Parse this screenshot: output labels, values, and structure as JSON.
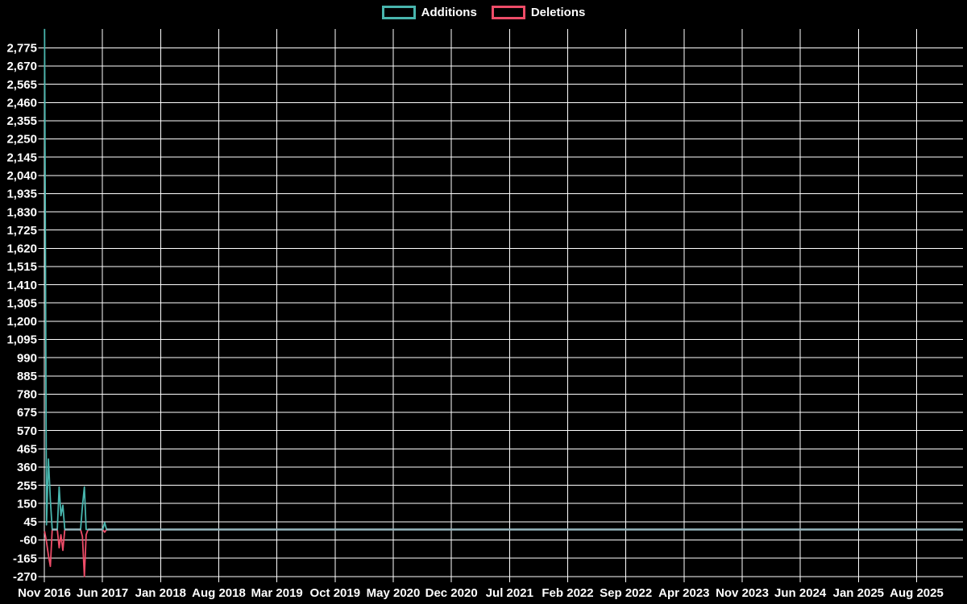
{
  "page": {
    "background_color": "#000000"
  },
  "legend": {
    "items": [
      {
        "label": "Additions",
        "color": "#48b5ad"
      },
      {
        "label": "Deletions",
        "color": "#ee4c68"
      }
    ]
  },
  "chart_data": {
    "type": "line",
    "title": "",
    "xlabel": "",
    "ylabel": "",
    "grid": true,
    "legend_position": "top-center",
    "background_color": "#000000",
    "grid_color": "#ffffff",
    "text_color": "#ffffff",
    "zero_overlap_color": "#96b6bd",
    "x_tick_labels": [
      "Nov 2016",
      "Jun 2017",
      "Jan 2018",
      "Aug 2018",
      "Mar 2019",
      "Oct 2019",
      "May 2020",
      "Dec 2020",
      "Jul 2021",
      "Feb 2022",
      "Sep 2022",
      "Apr 2023",
      "Nov 2023",
      "Jun 2024",
      "Jan 2025",
      "Aug 2025"
    ],
    "x_axis": {
      "start_label": "Nov 2016",
      "end_label": "Aug 2025",
      "tick_interval_months": 7
    },
    "y_tick_values": [
      2775,
      2670,
      2565,
      2460,
      2355,
      2250,
      2145,
      2040,
      1935,
      1830,
      1725,
      1620,
      1515,
      1410,
      1305,
      1200,
      1095,
      990,
      885,
      780,
      675,
      570,
      465,
      360,
      255,
      150,
      45,
      -60,
      -165,
      -270
    ],
    "y_axis": {
      "min": -304,
      "max": 2884,
      "tick_step": 105
    },
    "series": [
      {
        "name": "Additions",
        "color": "#48b5ad"
      },
      {
        "name": "Deletions",
        "color": "#ee4c68"
      }
    ],
    "points": [
      {
        "date": "2016-11-02",
        "additions": 2884,
        "deletions": -10
      },
      {
        "date": "2016-11-09",
        "additions": 27,
        "deletions": -70
      },
      {
        "date": "2016-11-16",
        "additions": 406,
        "deletions": -150
      },
      {
        "date": "2016-11-23",
        "additions": 170,
        "deletions": -212
      },
      {
        "date": "2016-11-30",
        "additions": 0,
        "deletions": 0
      },
      {
        "date": "2016-12-18",
        "additions": 0,
        "deletions": 0
      },
      {
        "date": "2016-12-25",
        "additions": 245,
        "deletions": -105
      },
      {
        "date": "2017-01-01",
        "additions": 80,
        "deletions": -30
      },
      {
        "date": "2017-01-08",
        "additions": 140,
        "deletions": -120
      },
      {
        "date": "2017-01-15",
        "additions": 0,
        "deletions": 0
      },
      {
        "date": "2017-03-12",
        "additions": 0,
        "deletions": 0
      },
      {
        "date": "2017-03-19",
        "additions": 135,
        "deletions": -40
      },
      {
        "date": "2017-03-26",
        "additions": 245,
        "deletions": -270
      },
      {
        "date": "2017-04-02",
        "additions": 0,
        "deletions": -30
      },
      {
        "date": "2017-04-09",
        "additions": 0,
        "deletions": 0
      },
      {
        "date": "2017-06-02",
        "additions": 0,
        "deletions": 0
      },
      {
        "date": "2017-06-09",
        "additions": 40,
        "deletions": -15
      },
      {
        "date": "2017-06-16",
        "additions": 0,
        "deletions": 0
      },
      {
        "date": "2025-12-28",
        "additions": 0,
        "deletions": 0
      }
    ]
  }
}
